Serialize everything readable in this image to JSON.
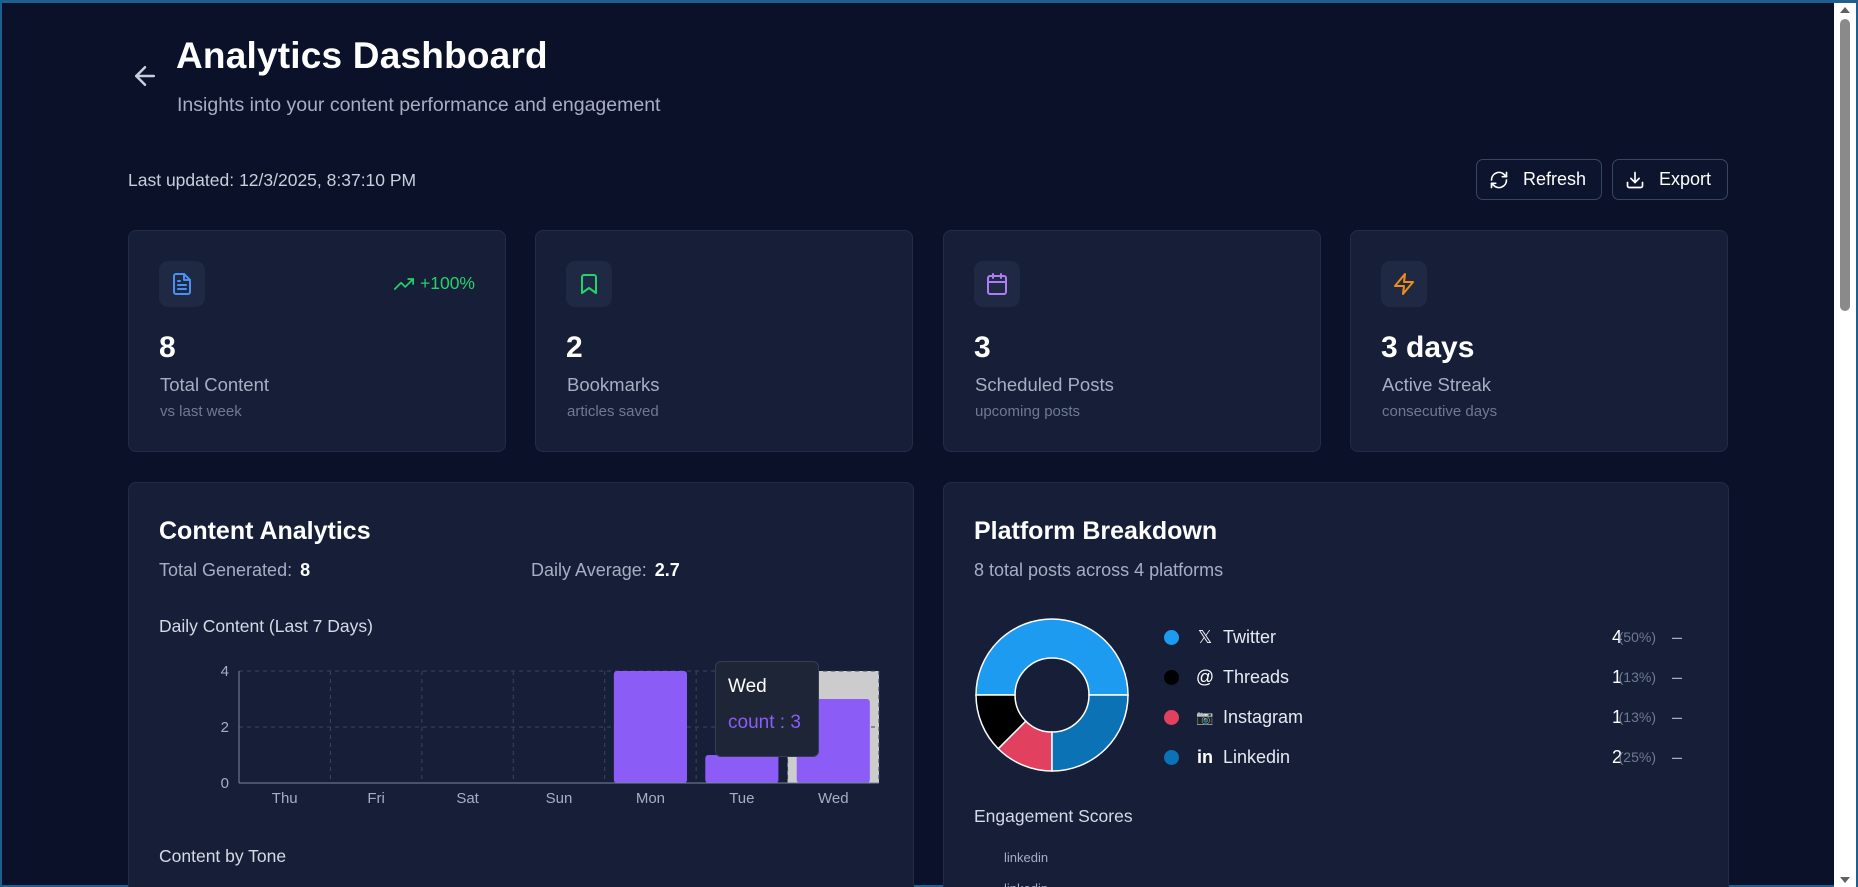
{
  "header": {
    "title": "Analytics Dashboard",
    "subtitle": "Insights into your content performance and engagement",
    "last_updated_label": "Last updated:",
    "last_updated_value": "12/3/2025, 8:37:10 PM",
    "refresh_label": "Refresh",
    "export_label": "Export"
  },
  "stats": [
    {
      "icon": "document-icon",
      "color": "#4a90f0",
      "value": "8",
      "label": "Total Content",
      "sub": "vs last week",
      "trend": "+100%"
    },
    {
      "icon": "bookmark-icon",
      "color": "#22d36b",
      "value": "2",
      "label": "Bookmarks",
      "sub": "articles saved"
    },
    {
      "icon": "calendar-icon",
      "color": "#b07cf6",
      "value": "3",
      "label": "Scheduled Posts",
      "sub": "upcoming posts"
    },
    {
      "icon": "lightning-icon",
      "color": "#f08c1a",
      "value": "3 days",
      "label": "Active Streak",
      "sub": "consecutive days"
    }
  ],
  "content_analytics": {
    "title": "Content Analytics",
    "total_generated_label": "Total Generated:",
    "total_generated_value": "8",
    "daily_average_label": "Daily Average:",
    "daily_average_value": "2.7",
    "chart_title": "Daily Content (Last 7 Days)",
    "tone_title": "Content by Tone",
    "tooltip": {
      "day": "Wed",
      "text": "count : 3"
    }
  },
  "platform_breakdown": {
    "title": "Platform Breakdown",
    "subtitle": "8 total posts across 4 platforms",
    "platforms": [
      {
        "glyph": "𝕏",
        "name": "Twitter",
        "count": "4",
        "pct": "(50%)",
        "dash": "–",
        "color": "#1d9bf0"
      },
      {
        "glyph": "@",
        "name": "Threads",
        "count": "1",
        "pct": "(13%)",
        "dash": "–",
        "color": "#000000"
      },
      {
        "glyph": "📷",
        "name": "Instagram",
        "count": "1",
        "pct": "(13%)",
        "dash": "–",
        "color": "#e1405f"
      },
      {
        "glyph": "in",
        "name": "Linkedin",
        "count": "2",
        "pct": "(25%)",
        "dash": "–",
        "color": "#0a72b5"
      }
    ],
    "engagement_title": "Engagement Scores",
    "engagement_first_label": "linkedin",
    "engagement_second_label": "linkedin"
  },
  "chart_data": [
    {
      "type": "bar",
      "title": "Daily Content (Last 7 Days)",
      "categories": [
        "Thu",
        "Fri",
        "Sat",
        "Sun",
        "Mon",
        "Tue",
        "Wed"
      ],
      "series": [
        {
          "name": "count",
          "values": [
            0,
            0,
            0,
            0,
            4,
            1,
            3
          ]
        }
      ],
      "yticks": [
        0,
        2,
        4
      ],
      "ylim": [
        0,
        4
      ],
      "grid": true,
      "highlighted_category": "Wed",
      "bar_color": "#8b5cf6"
    },
    {
      "type": "pie",
      "title": "Platform Breakdown",
      "categories": [
        "Twitter",
        "Threads",
        "Instagram",
        "Linkedin"
      ],
      "values": [
        4,
        1,
        1,
        2
      ],
      "colors": [
        "#1d9bf0",
        "#000000",
        "#e1405f",
        "#0a72b5"
      ],
      "donut": true
    }
  ]
}
